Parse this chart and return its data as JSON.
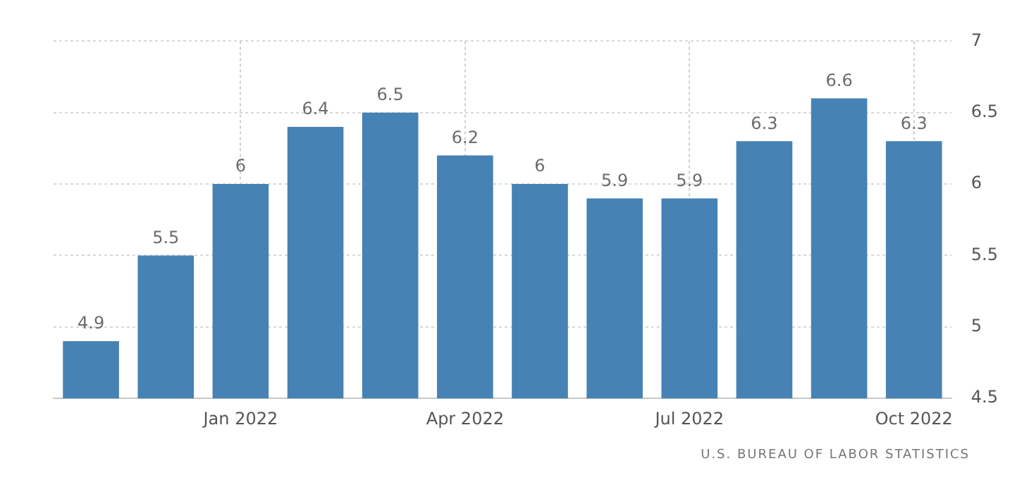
{
  "chart_data": {
    "type": "bar",
    "categories": [
      null,
      null,
      "Jan 2022",
      null,
      null,
      "Apr 2022",
      null,
      null,
      "Jul 2022",
      null,
      null,
      "Oct 2022"
    ],
    "values": [
      4.9,
      5.5,
      6,
      6.4,
      6.5,
      6.2,
      6,
      5.9,
      5.9,
      6.3,
      6.6,
      6.3
    ],
    "color": "#4682b4",
    "ylim": [
      4.5,
      7
    ],
    "yticks": [
      4.5,
      5,
      5.5,
      6,
      6.5,
      7
    ],
    "grid": true,
    "data_labels": true,
    "annotations": [
      "U.S. BUREAU OF LABOR STATISTICS"
    ]
  }
}
